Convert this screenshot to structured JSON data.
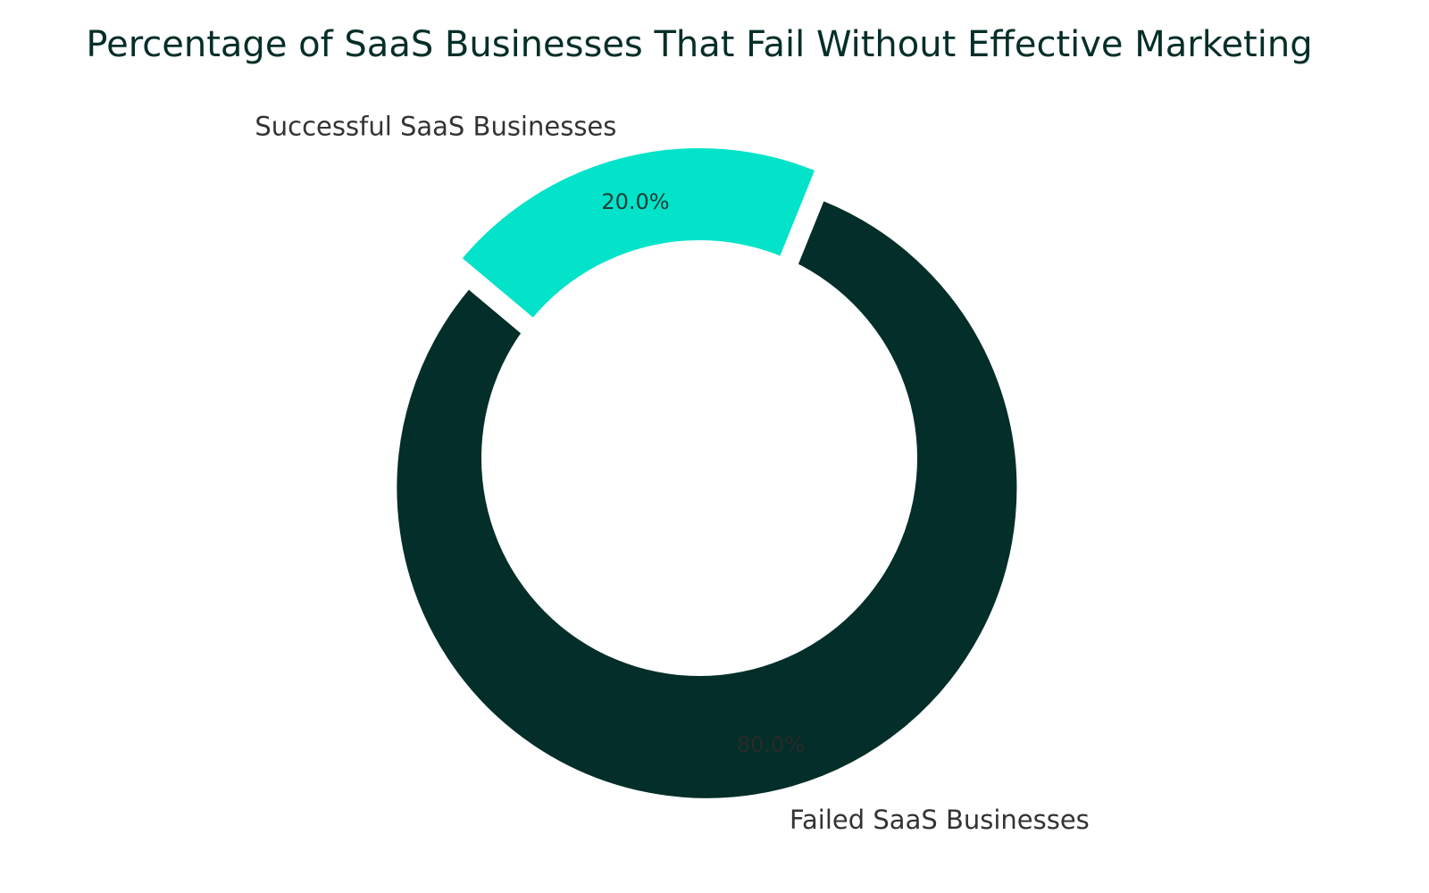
{
  "chart_data": {
    "type": "pie",
    "variant": "donut",
    "title": "Percentage of SaaS Businesses That Fail Without Effective Marketing",
    "categories": [
      "Successful SaaS Businesses",
      "Failed SaaS Businesses"
    ],
    "values": [
      20.0,
      80.0
    ],
    "labels": [
      "20.0%",
      "80.0%"
    ],
    "colors": [
      "#02e3c9",
      "#032e29"
    ],
    "explode": [
      0,
      0.1
    ],
    "start_angle": 140,
    "legend": "none"
  },
  "colors": {
    "title": "#042f28",
    "labels": "#333333",
    "pct_on_teal": "#1f3b36",
    "pct_on_dark": "#2a2a2a"
  }
}
